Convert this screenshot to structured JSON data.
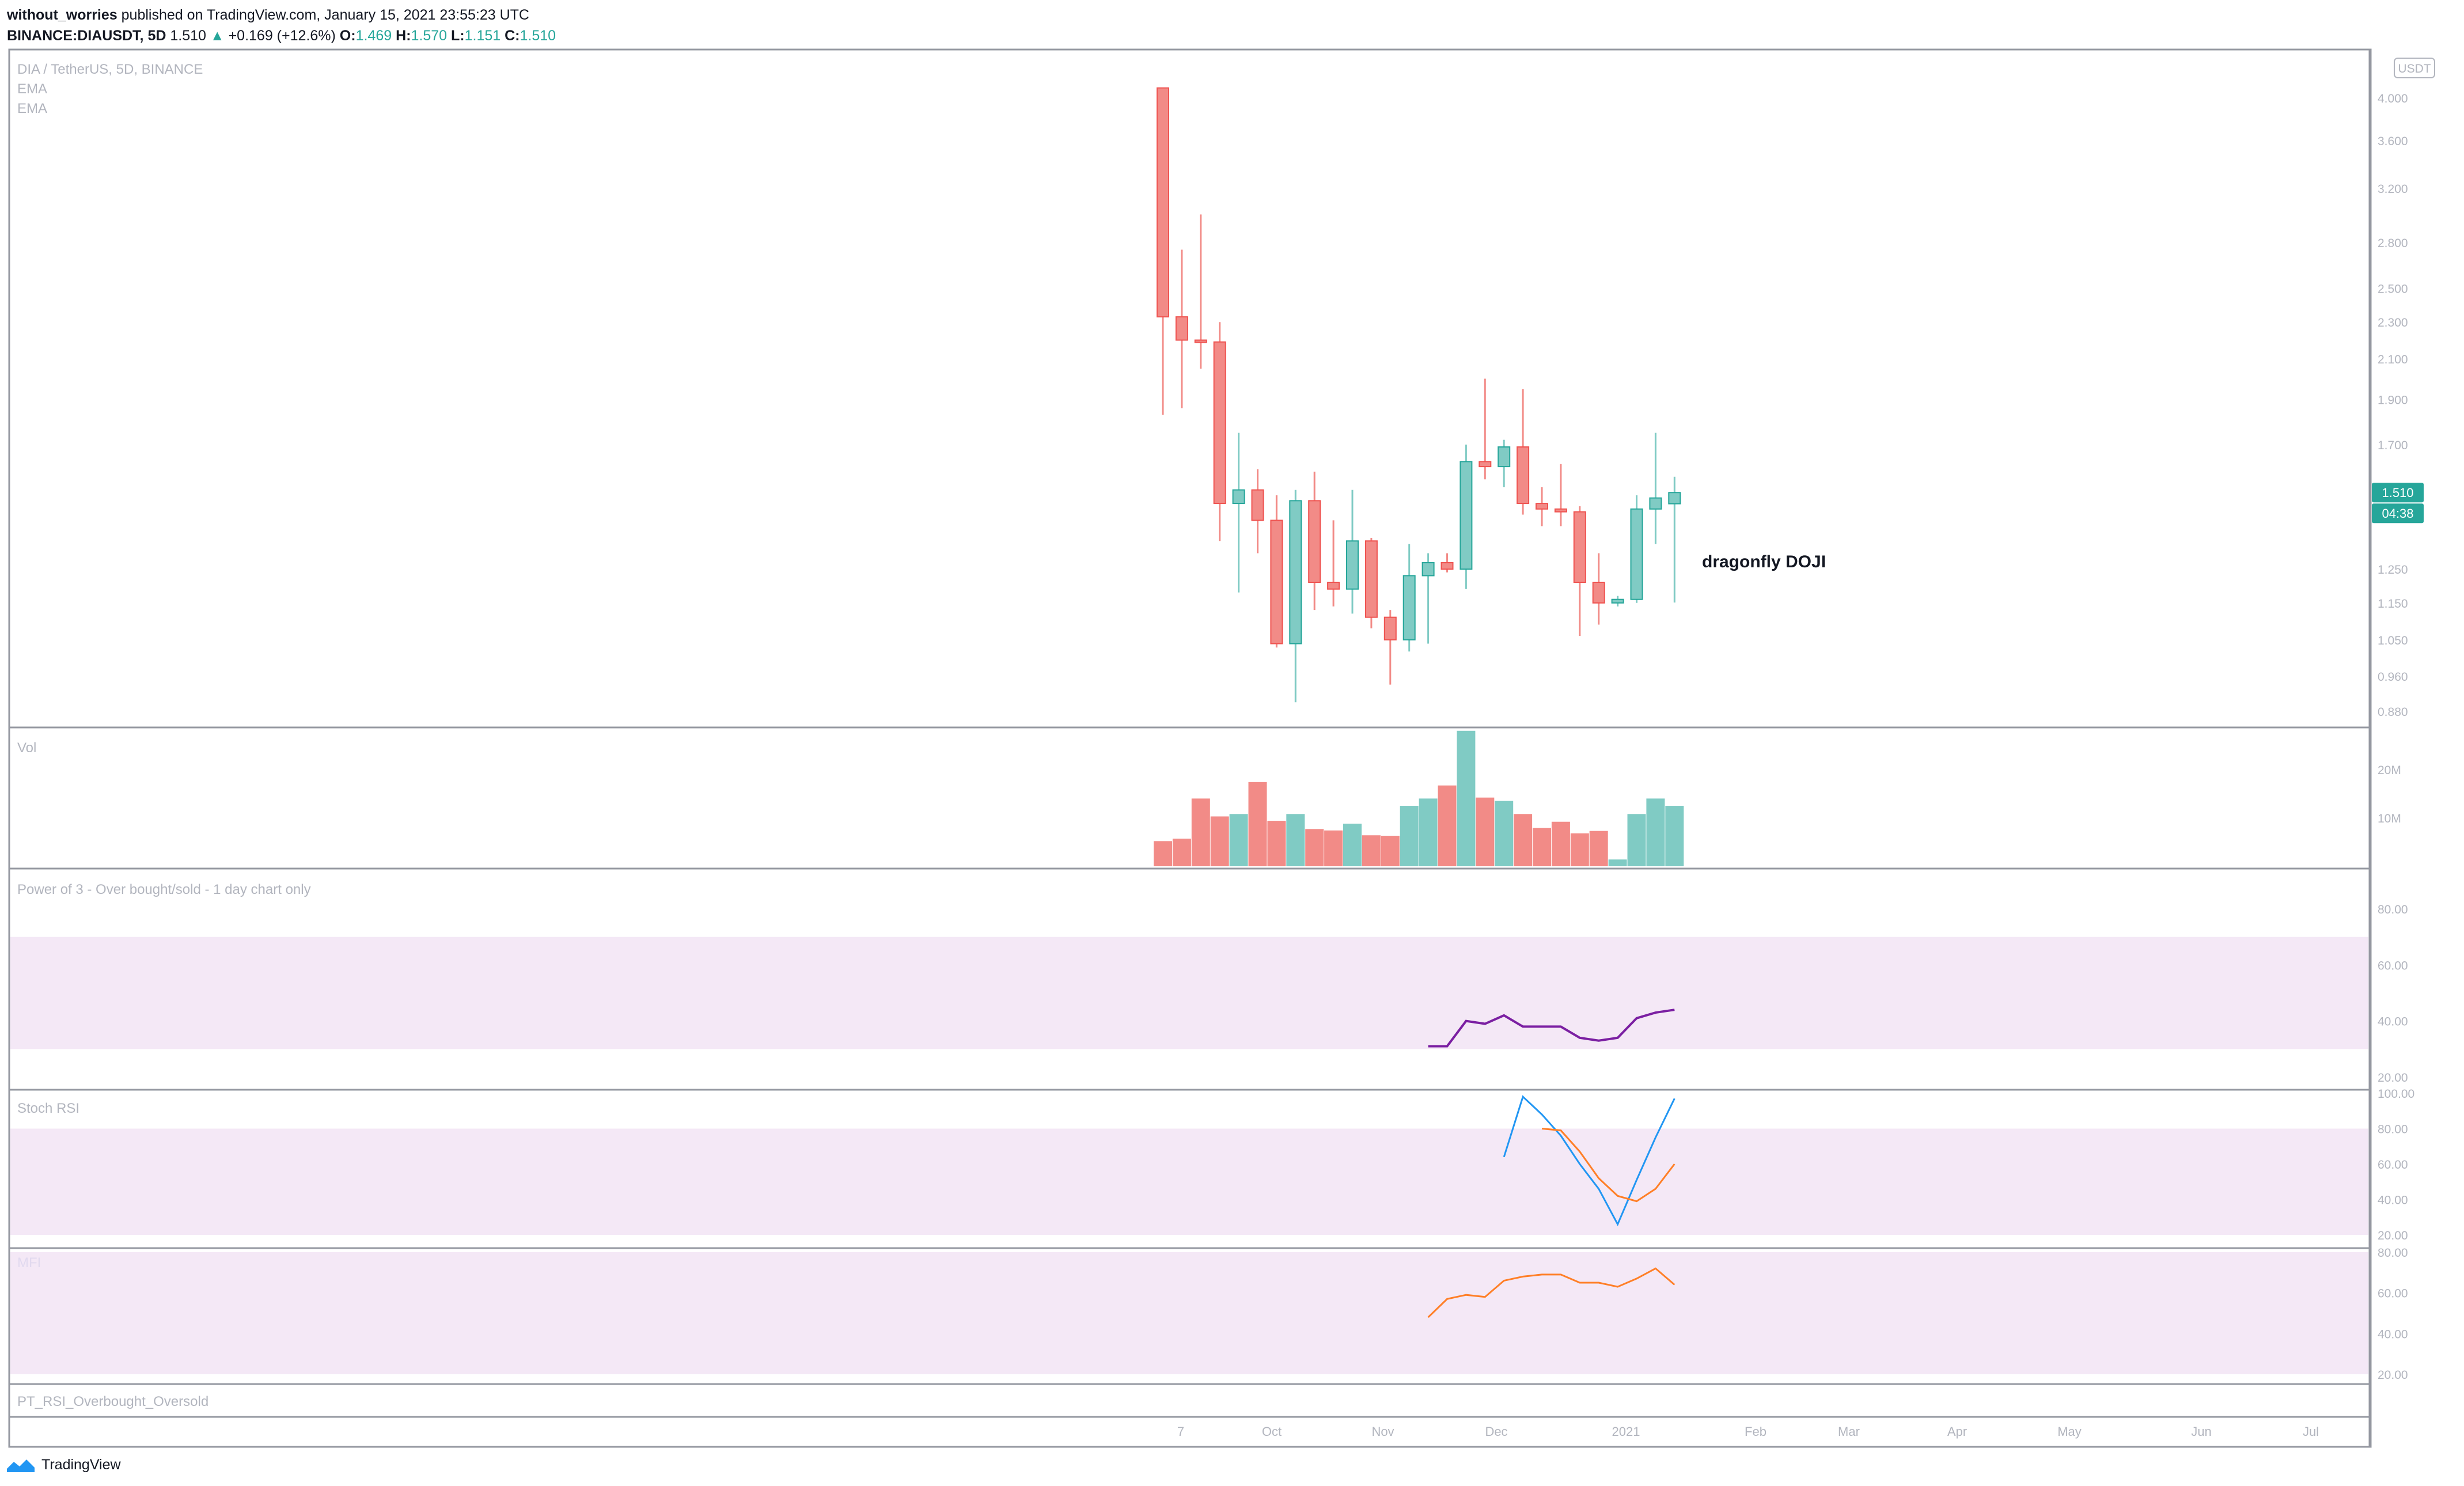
{
  "header": {
    "author": "without_worries",
    "published": "published on TradingView.com, January 15, 2021 23:55:23 UTC",
    "symbol": "BINANCE:DIAUSDT, 5D",
    "last": "1.510",
    "arrow": "▲",
    "change": "+0.169 (+12.6%)",
    "o_label": "O:",
    "o_value": "1.469",
    "h_label": "H:",
    "h_value": "1.570",
    "l_label": "L:",
    "l_value": "1.151",
    "c_label": "C:",
    "c_value": "1.510"
  },
  "footer": {
    "brand": "TradingView"
  },
  "colors": {
    "up": "#26a69a",
    "down": "#ef5350",
    "up_fill": "#80cbc4",
    "down_fill": "#f28b87",
    "rsi": "#7b1fa2",
    "band": "#f3e5f5",
    "stoch_k": "#2196f3",
    "stoch_d": "#ff7f27",
    "mfi": "#ff7f27"
  },
  "chart_data": [
    {
      "type": "candlestick",
      "title": "DIA / TetherUS, 5D, BINANCE",
      "legend": [
        "EMA",
        "EMA"
      ],
      "currency_badge": "USDT",
      "scale": "log",
      "yticks": [
        "4.000",
        "3.600",
        "3.200",
        "2.800",
        "2.500",
        "2.300",
        "2.100",
        "1.900",
        "1.700",
        "1.500",
        "1.250",
        "1.150",
        "1.050",
        "0.960",
        "0.880"
      ],
      "last_price_label": "1.510",
      "countdown_label": "04:38",
      "annotation": "dragonfly DOJI",
      "candles": [
        {
          "o": 4.1,
          "h": 4.1,
          "l": 1.83,
          "c": 2.33
        },
        {
          "o": 2.33,
          "h": 2.75,
          "l": 1.86,
          "c": 2.2
        },
        {
          "o": 2.2,
          "h": 3.0,
          "l": 2.05,
          "c": 2.19
        },
        {
          "o": 2.19,
          "h": 2.3,
          "l": 1.34,
          "c": 1.47
        },
        {
          "o": 1.47,
          "h": 1.75,
          "l": 1.18,
          "c": 1.52
        },
        {
          "o": 1.52,
          "h": 1.6,
          "l": 1.3,
          "c": 1.41
        },
        {
          "o": 1.41,
          "h": 1.5,
          "l": 1.03,
          "c": 1.04
        },
        {
          "o": 1.04,
          "h": 1.52,
          "l": 0.9,
          "c": 1.48
        },
        {
          "o": 1.48,
          "h": 1.59,
          "l": 1.13,
          "c": 1.21
        },
        {
          "o": 1.21,
          "h": 1.41,
          "l": 1.14,
          "c": 1.19
        },
        {
          "o": 1.19,
          "h": 1.52,
          "l": 1.12,
          "c": 1.34
        },
        {
          "o": 1.34,
          "h": 1.35,
          "l": 1.08,
          "c": 1.11
        },
        {
          "o": 1.11,
          "h": 1.13,
          "l": 0.94,
          "c": 1.05
        },
        {
          "o": 1.05,
          "h": 1.33,
          "l": 1.02,
          "c": 1.23
        },
        {
          "o": 1.23,
          "h": 1.3,
          "l": 1.04,
          "c": 1.27
        },
        {
          "o": 1.27,
          "h": 1.3,
          "l": 1.24,
          "c": 1.25
        },
        {
          "o": 1.25,
          "h": 1.7,
          "l": 1.19,
          "c": 1.63
        },
        {
          "o": 1.63,
          "h": 2.0,
          "l": 1.56,
          "c": 1.61
        },
        {
          "o": 1.61,
          "h": 1.72,
          "l": 1.53,
          "c": 1.69
        },
        {
          "o": 1.69,
          "h": 1.95,
          "l": 1.43,
          "c": 1.47
        },
        {
          "o": 1.47,
          "h": 1.53,
          "l": 1.39,
          "c": 1.45
        },
        {
          "o": 1.45,
          "h": 1.62,
          "l": 1.39,
          "c": 1.44
        },
        {
          "o": 1.44,
          "h": 1.46,
          "l": 1.06,
          "c": 1.21
        },
        {
          "o": 1.21,
          "h": 1.3,
          "l": 1.09,
          "c": 1.15
        },
        {
          "o": 1.15,
          "h": 1.17,
          "l": 1.14,
          "c": 1.16
        },
        {
          "o": 1.16,
          "h": 1.5,
          "l": 1.15,
          "c": 1.45
        },
        {
          "o": 1.45,
          "h": 1.75,
          "l": 1.33,
          "c": 1.49
        },
        {
          "o": 1.469,
          "h": 1.57,
          "l": 1.151,
          "c": 1.51
        }
      ]
    },
    {
      "type": "bar",
      "title": "Vol",
      "yticks": [
        "20M",
        "10M"
      ],
      "values": [
        5.2,
        5.7,
        14,
        10.3,
        10.8,
        17.4,
        9.4,
        10.8,
        7.7,
        7.4,
        8.8,
        6.4,
        6.3,
        12.5,
        14,
        16.7,
        28,
        14.2,
        13.5,
        10.8,
        7.9,
        9.2,
        6.8,
        7.3,
        1.4,
        10.8,
        14,
        12.5
      ]
    },
    {
      "type": "line",
      "title": "Power of 3 - Over bought/sold - 1 day chart only",
      "yticks": [
        "80.00",
        "60.00",
        "40.00",
        "20.00"
      ],
      "band": [
        30,
        70
      ],
      "values": [
        31,
        31,
        40,
        39,
        42,
        38,
        38,
        38,
        34,
        33,
        34,
        41,
        43,
        44
      ]
    },
    {
      "type": "line",
      "title": "Stoch RSI",
      "yticks": [
        "100.00",
        "80.00",
        "60.00",
        "40.00",
        "20.00"
      ],
      "band": [
        20,
        80
      ],
      "series": [
        {
          "values": [
            64,
            98,
            88,
            76,
            60,
            46,
            26,
            51,
            75,
            97
          ]
        },
        {
          "values": [
            80,
            79,
            67,
            52,
            42,
            39,
            46,
            60
          ]
        }
      ]
    },
    {
      "type": "line",
      "title": "MFI",
      "yticks": [
        "80.00",
        "60.00",
        "40.00",
        "20.00"
      ],
      "band": [
        20,
        80
      ],
      "values": [
        48,
        57,
        59,
        58,
        66,
        68,
        69,
        69,
        65,
        65,
        63,
        67,
        72,
        64
      ]
    },
    {
      "type": "line",
      "title": "PT_RSI_Overbought_Oversold",
      "values": []
    }
  ],
  "xaxis": {
    "ticks": [
      "7",
      "Oct",
      "Nov",
      "Dec",
      "2021",
      "Feb",
      "Mar",
      "Apr",
      "May",
      "Jun",
      "Jul"
    ]
  }
}
